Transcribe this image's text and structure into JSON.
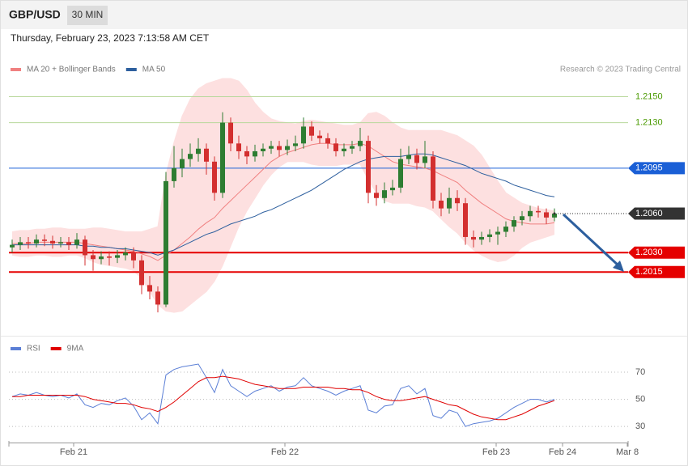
{
  "header": {
    "symbol": "GBP/USD",
    "interval": "30 MIN",
    "timestamp": "Thursday, February 23, 2023 7:13:58 AM CET"
  },
  "chart_data": [
    {
      "type": "candlestick",
      "source": "Research © 2023 Trading Central",
      "up_color": "#2e7d32",
      "down_color": "#d32f2f",
      "band_color": "#fde0e0",
      "xlim": [
        -0.4,
        76.1
      ],
      "ylim": [
        1.1966,
        1.2202
      ],
      "candles": [
        [
          1.2034,
          1.204,
          1.203,
          1.2036
        ],
        [
          1.2036,
          1.2042,
          1.2032,
          1.2038
        ],
        [
          1.2038,
          1.2042,
          1.2033,
          1.2037
        ],
        [
          1.2037,
          1.2044,
          1.2034,
          1.204
        ],
        [
          1.204,
          1.2044,
          1.2035,
          1.2039
        ],
        [
          1.2039,
          1.2043,
          1.2033,
          1.2037
        ],
        [
          1.2037,
          1.2042,
          1.2034,
          1.2038
        ],
        [
          1.2038,
          1.2042,
          1.2032,
          1.2036
        ],
        [
          1.2036,
          1.2045,
          1.2033,
          1.204
        ],
        [
          1.204,
          1.2043,
          1.202,
          1.2028
        ],
        [
          1.2028,
          1.2032,
          1.2016,
          1.2025
        ],
        [
          1.2025,
          1.2031,
          1.2021,
          1.2027
        ],
        [
          1.2027,
          1.2031,
          1.202,
          1.2026
        ],
        [
          1.2026,
          1.2032,
          1.2022,
          1.2028
        ],
        [
          1.2028,
          1.2034,
          1.2024,
          1.203
        ],
        [
          1.203,
          1.2034,
          1.2018,
          1.2024
        ],
        [
          1.2024,
          1.2028,
          1.1998,
          1.2005
        ],
        [
          1.2005,
          1.2012,
          1.1994,
          1.2
        ],
        [
          1.2,
          1.2004,
          1.1984,
          1.199
        ],
        [
          1.199,
          1.2092,
          1.1988,
          1.2085
        ],
        [
          1.2085,
          1.2112,
          1.208,
          1.2095
        ],
        [
          1.2095,
          1.211,
          1.2088,
          1.2102
        ],
        [
          1.2102,
          1.2114,
          1.2096,
          1.2106
        ],
        [
          1.2106,
          1.2118,
          1.21,
          1.211
        ],
        [
          1.211,
          1.2114,
          1.209,
          1.21
        ],
        [
          1.21,
          1.2104,
          1.207,
          1.2076
        ],
        [
          1.2076,
          1.2138,
          1.2072,
          1.213
        ],
        [
          1.213,
          1.2134,
          1.2108,
          1.2114
        ],
        [
          1.2114,
          1.212,
          1.2102,
          1.2108
        ],
        [
          1.2108,
          1.2112,
          1.2098,
          1.2104
        ],
        [
          1.2104,
          1.2113,
          1.21,
          1.2108
        ],
        [
          1.2108,
          1.2114,
          1.2104,
          1.211
        ],
        [
          1.211,
          1.2116,
          1.2106,
          1.2112
        ],
        [
          1.2112,
          1.2116,
          1.2104,
          1.2109
        ],
        [
          1.2109,
          1.2117,
          1.2105,
          1.2112
        ],
        [
          1.2112,
          1.212,
          1.2108,
          1.2114
        ],
        [
          1.2114,
          1.2134,
          1.211,
          1.2127
        ],
        [
          1.2127,
          1.2131,
          1.2116,
          1.212
        ],
        [
          1.212,
          1.2124,
          1.2114,
          1.2118
        ],
        [
          1.2118,
          1.2122,
          1.211,
          1.2114
        ],
        [
          1.2114,
          1.2118,
          1.2104,
          1.2108
        ],
        [
          1.2108,
          1.2114,
          1.2104,
          1.211
        ],
        [
          1.211,
          1.2116,
          1.2106,
          1.2112
        ],
        [
          1.2112,
          1.2126,
          1.2108,
          1.2116
        ],
        [
          1.2116,
          1.212,
          1.2068,
          1.2076
        ],
        [
          1.2076,
          1.2082,
          1.2066,
          1.2072
        ],
        [
          1.2072,
          1.2084,
          1.2068,
          1.2078
        ],
        [
          1.2078,
          1.2086,
          1.2074,
          1.208
        ],
        [
          1.208,
          1.211,
          1.2076,
          1.2102
        ],
        [
          1.2102,
          1.2112,
          1.2098,
          1.2105
        ],
        [
          1.2105,
          1.211,
          1.2094,
          1.2099
        ],
        [
          1.2099,
          1.2116,
          1.2095,
          1.2104
        ],
        [
          1.2104,
          1.2108,
          1.2064,
          1.207
        ],
        [
          1.207,
          1.2076,
          1.2058,
          1.2064
        ],
        [
          1.2064,
          1.208,
          1.206,
          1.2072
        ],
        [
          1.2072,
          1.2078,
          1.2062,
          1.2068
        ],
        [
          1.2068,
          1.2072,
          1.2036,
          1.2042
        ],
        [
          1.2042,
          1.2047,
          1.2034,
          1.204
        ],
        [
          1.204,
          1.2046,
          1.2036,
          1.2042
        ],
        [
          1.2042,
          1.2048,
          1.2038,
          1.2044
        ],
        [
          1.2044,
          1.205,
          1.2036,
          1.2046
        ],
        [
          1.2046,
          1.2054,
          1.2042,
          1.205
        ],
        [
          1.205,
          1.2058,
          1.2046,
          1.2055
        ],
        [
          1.2055,
          1.2062,
          1.2051,
          1.2058
        ],
        [
          1.2058,
          1.2066,
          1.2054,
          1.2062
        ],
        [
          1.2062,
          1.2066,
          1.2057,
          1.2061
        ],
        [
          1.2061,
          1.2064,
          1.2052,
          1.2057
        ],
        [
          1.2057,
          1.2064,
          1.2054,
          1.206
        ]
      ],
      "series": [
        {
          "name": "MA 20 + Bollinger Bands",
          "color": "#f08080",
          "values": [
            1.2037,
            1.2037,
            1.2037,
            1.2038,
            1.2038,
            1.2038,
            1.2038,
            1.2038,
            1.2038,
            1.2037,
            1.2036,
            1.2035,
            1.2034,
            1.2033,
            1.2032,
            1.2031,
            1.2029,
            1.2027,
            1.2024,
            1.2028,
            1.2032,
            1.2037,
            1.2042,
            1.2048,
            1.2053,
            1.2057,
            1.2064,
            1.207,
            1.2076,
            1.2082,
            1.2088,
            1.2094,
            1.21,
            1.2104,
            1.2107,
            1.2109,
            1.2111,
            1.2113,
            1.2114,
            1.2114,
            1.2113,
            1.2113,
            1.2113,
            1.2114,
            1.2112,
            1.2108,
            1.2104,
            1.21,
            1.2098,
            1.2097,
            1.2096,
            1.2095,
            1.2093,
            1.209,
            1.2087,
            1.2084,
            1.2078,
            1.2073,
            1.2068,
            1.2064,
            1.206,
            1.2056,
            1.2054,
            1.2053,
            1.2052,
            1.2052,
            1.2052,
            1.2053
          ],
          "upper": [
            1.2046,
            1.2047,
            1.2047,
            1.2048,
            1.2048,
            1.2049,
            1.2049,
            1.2048,
            1.2048,
            1.2048,
            1.2049,
            1.2049,
            1.2048,
            1.2047,
            1.2046,
            1.2046,
            1.2046,
            1.2048,
            1.205,
            1.209,
            1.2115,
            1.2135,
            1.2148,
            1.2156,
            1.216,
            1.2162,
            1.2164,
            1.2164,
            1.2162,
            1.2155,
            1.2145,
            1.2138,
            1.2133,
            1.2131,
            1.213,
            1.2129,
            1.2131,
            1.2132,
            1.2131,
            1.213,
            1.2129,
            1.2128,
            1.2128,
            1.213,
            1.2137,
            1.2138,
            1.2135,
            1.213,
            1.2126,
            1.2124,
            1.2124,
            1.2124,
            1.2124,
            1.2124,
            1.2122,
            1.212,
            1.2116,
            1.2112,
            1.2105,
            1.2095,
            1.2085,
            1.2076,
            1.2072,
            1.2068,
            1.2066,
            1.2064,
            1.2063,
            1.2062
          ],
          "lower": [
            1.2028,
            1.2027,
            1.2027,
            1.2028,
            1.2028,
            1.2027,
            1.2027,
            1.2028,
            1.2028,
            1.2026,
            1.2023,
            1.2021,
            1.202,
            1.2019,
            1.2018,
            1.2016,
            1.201,
            1.2,
            1.199,
            1.1985,
            1.1984,
            1.1985,
            1.199,
            1.1995,
            1.2,
            1.2008,
            1.202,
            1.2035,
            1.205,
            1.2062,
            1.2072,
            1.2082,
            1.209,
            1.2096,
            1.21,
            1.21,
            1.21,
            1.2098,
            1.2097,
            1.2097,
            1.2097,
            1.2098,
            1.2098,
            1.2098,
            1.2086,
            1.2076,
            1.207,
            1.2068,
            1.2068,
            1.2068,
            1.2066,
            1.2065,
            1.2062,
            1.2056,
            1.205,
            1.2045,
            1.2038,
            1.2032,
            1.2028,
            1.2025,
            1.2023,
            1.2024,
            1.2028,
            1.2034,
            1.2038,
            1.204,
            1.2042,
            1.2044
          ]
        },
        {
          "name": "MA 50",
          "color": "#2d5f9e",
          "values": [
            1.2036,
            1.2036,
            1.2036,
            1.2036,
            1.2036,
            1.2036,
            1.2036,
            1.2036,
            1.2036,
            1.2035,
            1.2035,
            1.2034,
            1.2034,
            1.2033,
            1.2033,
            1.2032,
            1.2031,
            1.203,
            1.2028,
            1.203,
            1.2032,
            1.2035,
            1.2038,
            1.2041,
            1.2044,
            1.2046,
            1.2049,
            1.2052,
            1.2054,
            1.2056,
            1.2058,
            1.2061,
            1.2063,
            1.2066,
            1.2069,
            1.2072,
            1.2075,
            1.2078,
            1.2082,
            1.2086,
            1.209,
            1.2094,
            1.2097,
            1.21,
            1.2102,
            1.2103,
            1.2104,
            1.2104,
            1.2104,
            1.2105,
            1.2106,
            1.2106,
            1.2105,
            1.2103,
            1.2101,
            1.2099,
            1.2097,
            1.2094,
            1.2091,
            1.2089,
            1.2087,
            1.2085,
            1.2082,
            1.208,
            1.2078,
            1.2076,
            1.2074,
            1.2073
          ]
        }
      ],
      "levels": [
        {
          "value": 1.215,
          "label": "1.2150",
          "color": "#b8d89c",
          "text_color": "#4a9a00",
          "tag": false,
          "dash": false,
          "width": 1
        },
        {
          "value": 1.213,
          "label": "1.2130",
          "color": "#b8d89c",
          "text_color": "#4a9a00",
          "tag": false,
          "dash": false,
          "width": 1
        },
        {
          "value": 1.2095,
          "label": "1.2095",
          "color": "#1a5fd6",
          "text_color": "#ffffff",
          "tag": true,
          "dash": false,
          "width": 1
        },
        {
          "value": 1.206,
          "label": "1.2060",
          "color": "#333333",
          "text_color": "#ffffff",
          "tag": true,
          "dash": true,
          "width": 1
        },
        {
          "value": 1.203,
          "label": "1.2030",
          "color": "#e50000",
          "text_color": "#ffffff",
          "tag": true,
          "dash": false,
          "width": 2
        },
        {
          "value": 1.2015,
          "label": "1.2015",
          "color": "#e50000",
          "text_color": "#ffffff",
          "tag": true,
          "dash": false,
          "width": 2
        }
      ]
    },
    {
      "type": "line",
      "xlim": [
        -0.4,
        76.1
      ],
      "ylim": [
        19.3,
        96.3
      ],
      "yticks": [
        70,
        50,
        30
      ],
      "xticks": [
        {
          "value": 7.6,
          "label": "Feb 21"
        },
        {
          "value": 33.7,
          "label": "Feb 22"
        },
        {
          "value": 59.8,
          "label": "Feb 23"
        },
        {
          "value": 68,
          "label": "Feb 24"
        },
        {
          "value": 76,
          "label": "Mar 8"
        }
      ],
      "series": [
        {
          "name": "RSI",
          "color": "#5b7fd6",
          "values": [
            52,
            54,
            53,
            55,
            53,
            52,
            53,
            51,
            54,
            46,
            44,
            47,
            46,
            49,
            51,
            45,
            35,
            40,
            32,
            68,
            72,
            74,
            75,
            76,
            66,
            55,
            72,
            60,
            56,
            52,
            56,
            58,
            60,
            56,
            59,
            60,
            66,
            60,
            58,
            56,
            53,
            56,
            58,
            60,
            42,
            40,
            45,
            46,
            58,
            60,
            54,
            58,
            38,
            36,
            42,
            40,
            30,
            32,
            33,
            34,
            36,
            40,
            44,
            47,
            50,
            50,
            48,
            50
          ]
        },
        {
          "name": "9MA",
          "color": "#e00000",
          "values": [
            52,
            52,
            53,
            53,
            53,
            53,
            53,
            53,
            53,
            52,
            50,
            49,
            48,
            47,
            47,
            46,
            44,
            43,
            41,
            44,
            48,
            53,
            58,
            63,
            66,
            66,
            67,
            66,
            65,
            63,
            61,
            60,
            59,
            58,
            58,
            58,
            59,
            59,
            59,
            59,
            58,
            58,
            57,
            57,
            55,
            52,
            50,
            49,
            49,
            50,
            51,
            52,
            50,
            48,
            46,
            45,
            42,
            39,
            37,
            36,
            35,
            35,
            37,
            39,
            42,
            45,
            47,
            49
          ]
        }
      ]
    }
  ]
}
